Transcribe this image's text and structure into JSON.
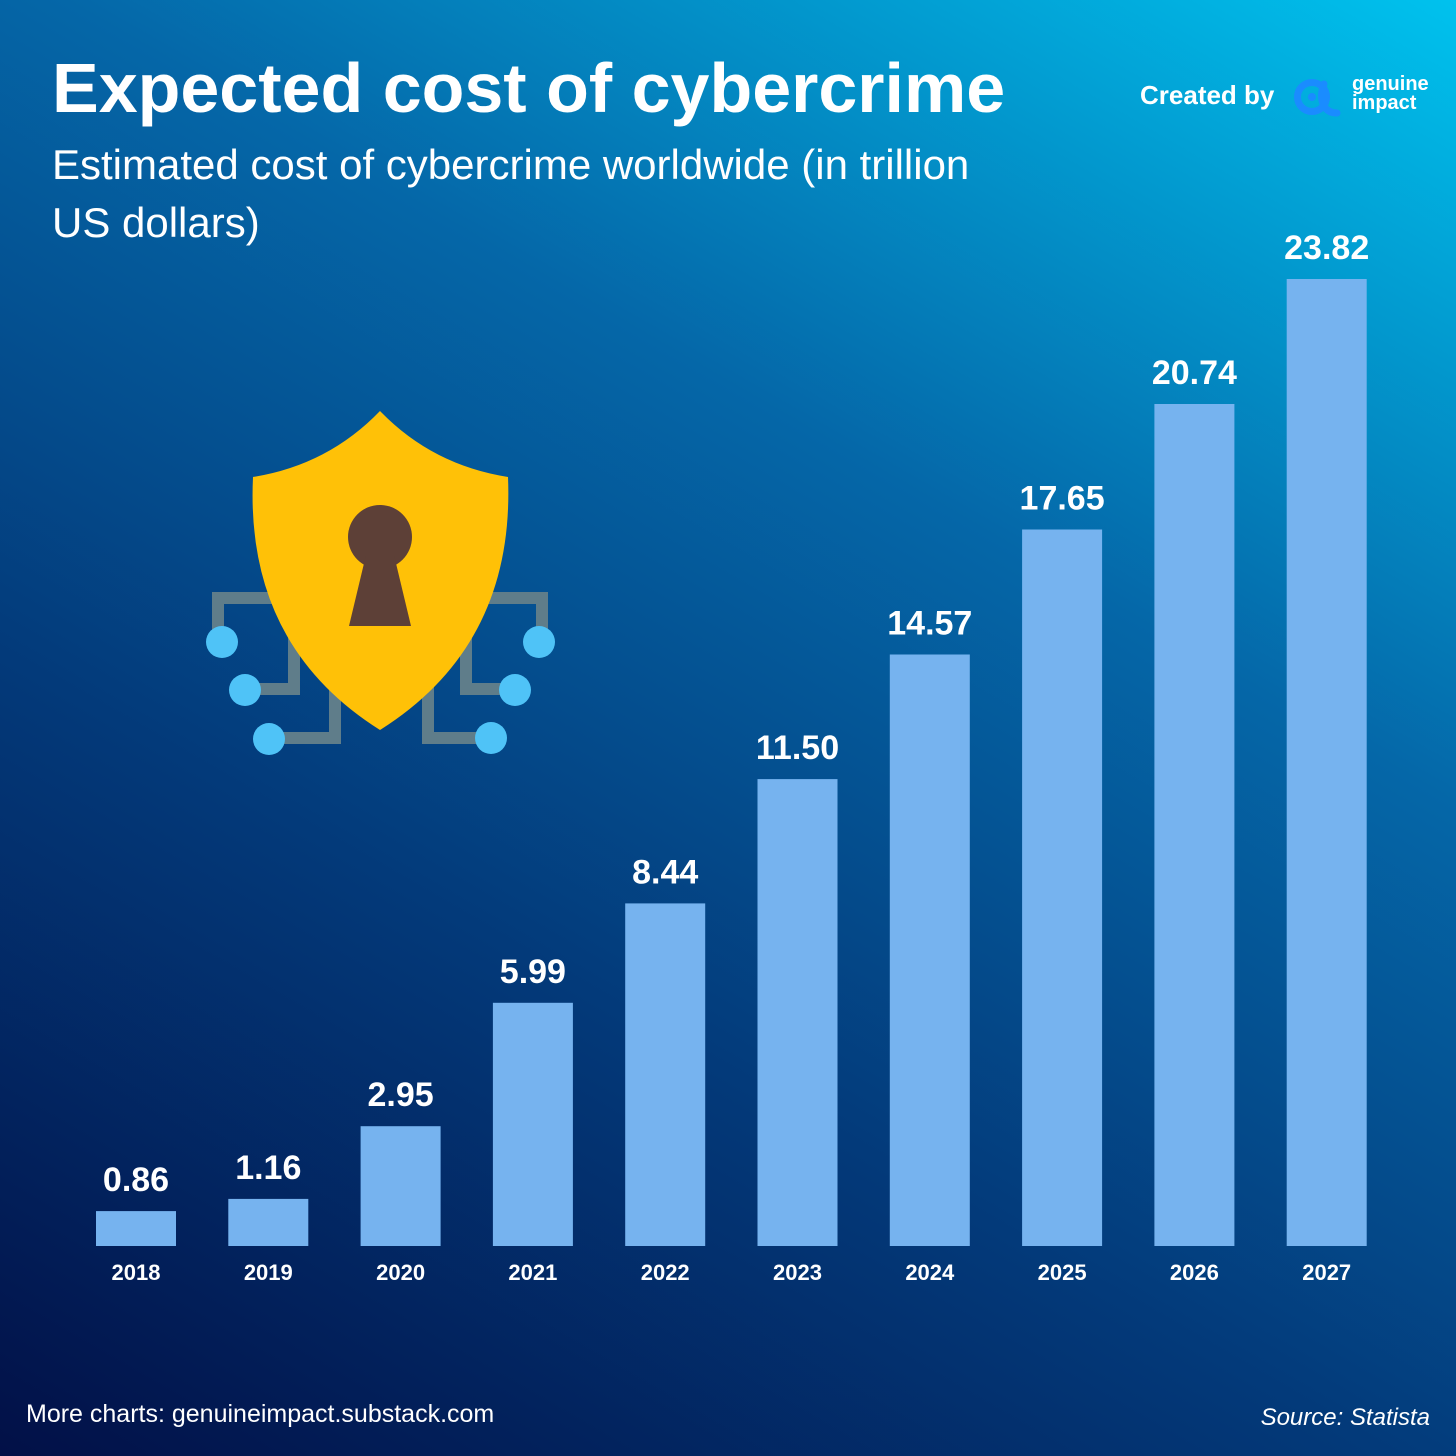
{
  "header": {
    "title": "Expected cost of cybercrime",
    "subtitle": "Estimated cost of cybercrime worldwide (in trillion US dollars)"
  },
  "brand": {
    "created_by": "Created by",
    "name": "genuine\nimpact",
    "logo_icon": "alpha-logo-icon",
    "accent_color": "#1a8cff"
  },
  "illustration": {
    "icon": "shield-keyhole-icon",
    "shield_color": "#ffc107",
    "keyhole_color": "#5d4037",
    "circuit_color": "#5f7d8a",
    "node_color": "#4fc3f7"
  },
  "chart_data": {
    "type": "bar",
    "title": "Expected cost of cybercrime",
    "subtitle": "Estimated cost of cybercrime worldwide (in trillion US dollars)",
    "categories": [
      "2018",
      "2019",
      "2020",
      "2021",
      "2022",
      "2023",
      "2024",
      "2025",
      "2026",
      "2027"
    ],
    "values": [
      0.86,
      1.16,
      2.95,
      5.99,
      8.44,
      11.5,
      14.57,
      17.65,
      20.74,
      23.82
    ],
    "value_labels": [
      "0.86",
      "1.16",
      "2.95",
      "5.99",
      "8.44",
      "11.50",
      "14.57",
      "17.65",
      "20.74",
      "23.82"
    ],
    "xlabel": "",
    "ylabel": "",
    "ylim": [
      0,
      23.82
    ],
    "grid": false,
    "bar_color": "#76b3ef"
  },
  "footer": {
    "more": "More charts: genuineimpact.substack.com",
    "source": "Source: Statista"
  }
}
